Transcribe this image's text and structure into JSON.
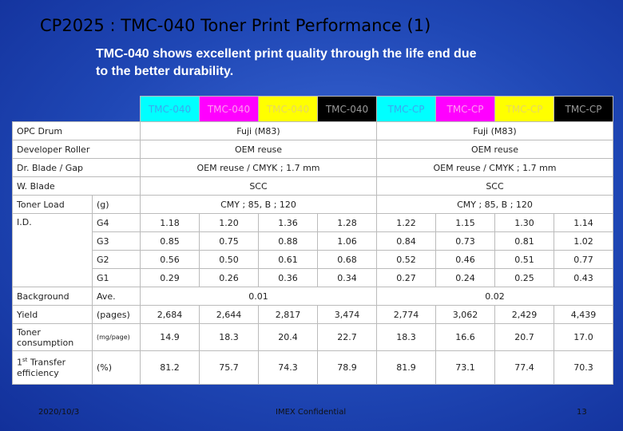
{
  "header": {
    "title": "CP2025 : TMC-040 Toner Print Performance (1)",
    "subtitle": [
      "TMC-040 shows excellent print quality through the life end due",
      "to the better durability."
    ]
  },
  "table": {
    "columns": [
      "TMC-040",
      "TMC-040",
      "TMC-040",
      "TMC-040",
      "TMC-CP",
      "TMC-CP",
      "TMC-CP",
      "TMC-CP"
    ],
    "rows": [
      {
        "label": "OPC Drum",
        "groups": [
          "Fuji (M83)",
          "Fuji (M83)"
        ]
      },
      {
        "label": "Developer Roller",
        "groups": [
          "OEM reuse",
          "OEM reuse"
        ]
      },
      {
        "label": "Dr. Blade / Gap",
        "groups": [
          "OEM reuse / CMYK ; 1.7 mm",
          "OEM reuse / CMYK ; 1.7 mm"
        ]
      },
      {
        "label": "W. Blade",
        "groups": [
          "SCC",
          "SCC"
        ]
      },
      {
        "label": "Toner Load",
        "unit": "(g)",
        "groups": [
          "CMY ; 85, B ; 120",
          "CMY ; 85, B ; 120"
        ]
      },
      {
        "label": "I.D.",
        "subrows": [
          {
            "unit": "G4",
            "values": [
              "1.18",
              "1.20",
              "1.36",
              "1.28",
              "1.22",
              "1.15",
              "1.30",
              "1.14"
            ]
          },
          {
            "unit": "G3",
            "values": [
              "0.85",
              "0.75",
              "0.88",
              "1.06",
              "0.84",
              "0.73",
              "0.81",
              "1.02"
            ]
          },
          {
            "unit": "G2",
            "values": [
              "0.56",
              "0.50",
              "0.61",
              "0.68",
              "0.52",
              "0.46",
              "0.51",
              "0.77"
            ]
          },
          {
            "unit": "G1",
            "values": [
              "0.29",
              "0.26",
              "0.36",
              "0.34",
              "0.27",
              "0.24",
              "0.25",
              "0.43"
            ]
          }
        ]
      },
      {
        "label": "Background",
        "unit": "Ave.",
        "groups": [
          "0.01",
          "0.02"
        ]
      },
      {
        "label": "Yield",
        "unit": "(pages)",
        "values": [
          "2,684",
          "2,644",
          "2,817",
          "3,474",
          "2,774",
          "3,062",
          "2,429",
          "4,439"
        ]
      },
      {
        "label": "Toner consumption",
        "unit": "(mg/page)",
        "values": [
          "14.9",
          "18.3",
          "20.4",
          "22.7",
          "18.3",
          "16.6",
          "20.7",
          "17.0"
        ]
      },
      {
        "label": "1",
        "label_sup": "st",
        "label_rest": "Transfer efficiency",
        "unit": "(%)",
        "values": [
          "81.2",
          "75.7",
          "74.3",
          "78.9",
          "81.9",
          "73.1",
          "77.4",
          "70.3"
        ]
      }
    ]
  },
  "footer": {
    "date": "2020/10/3",
    "note": "IMEX Confidential",
    "page": "13"
  }
}
